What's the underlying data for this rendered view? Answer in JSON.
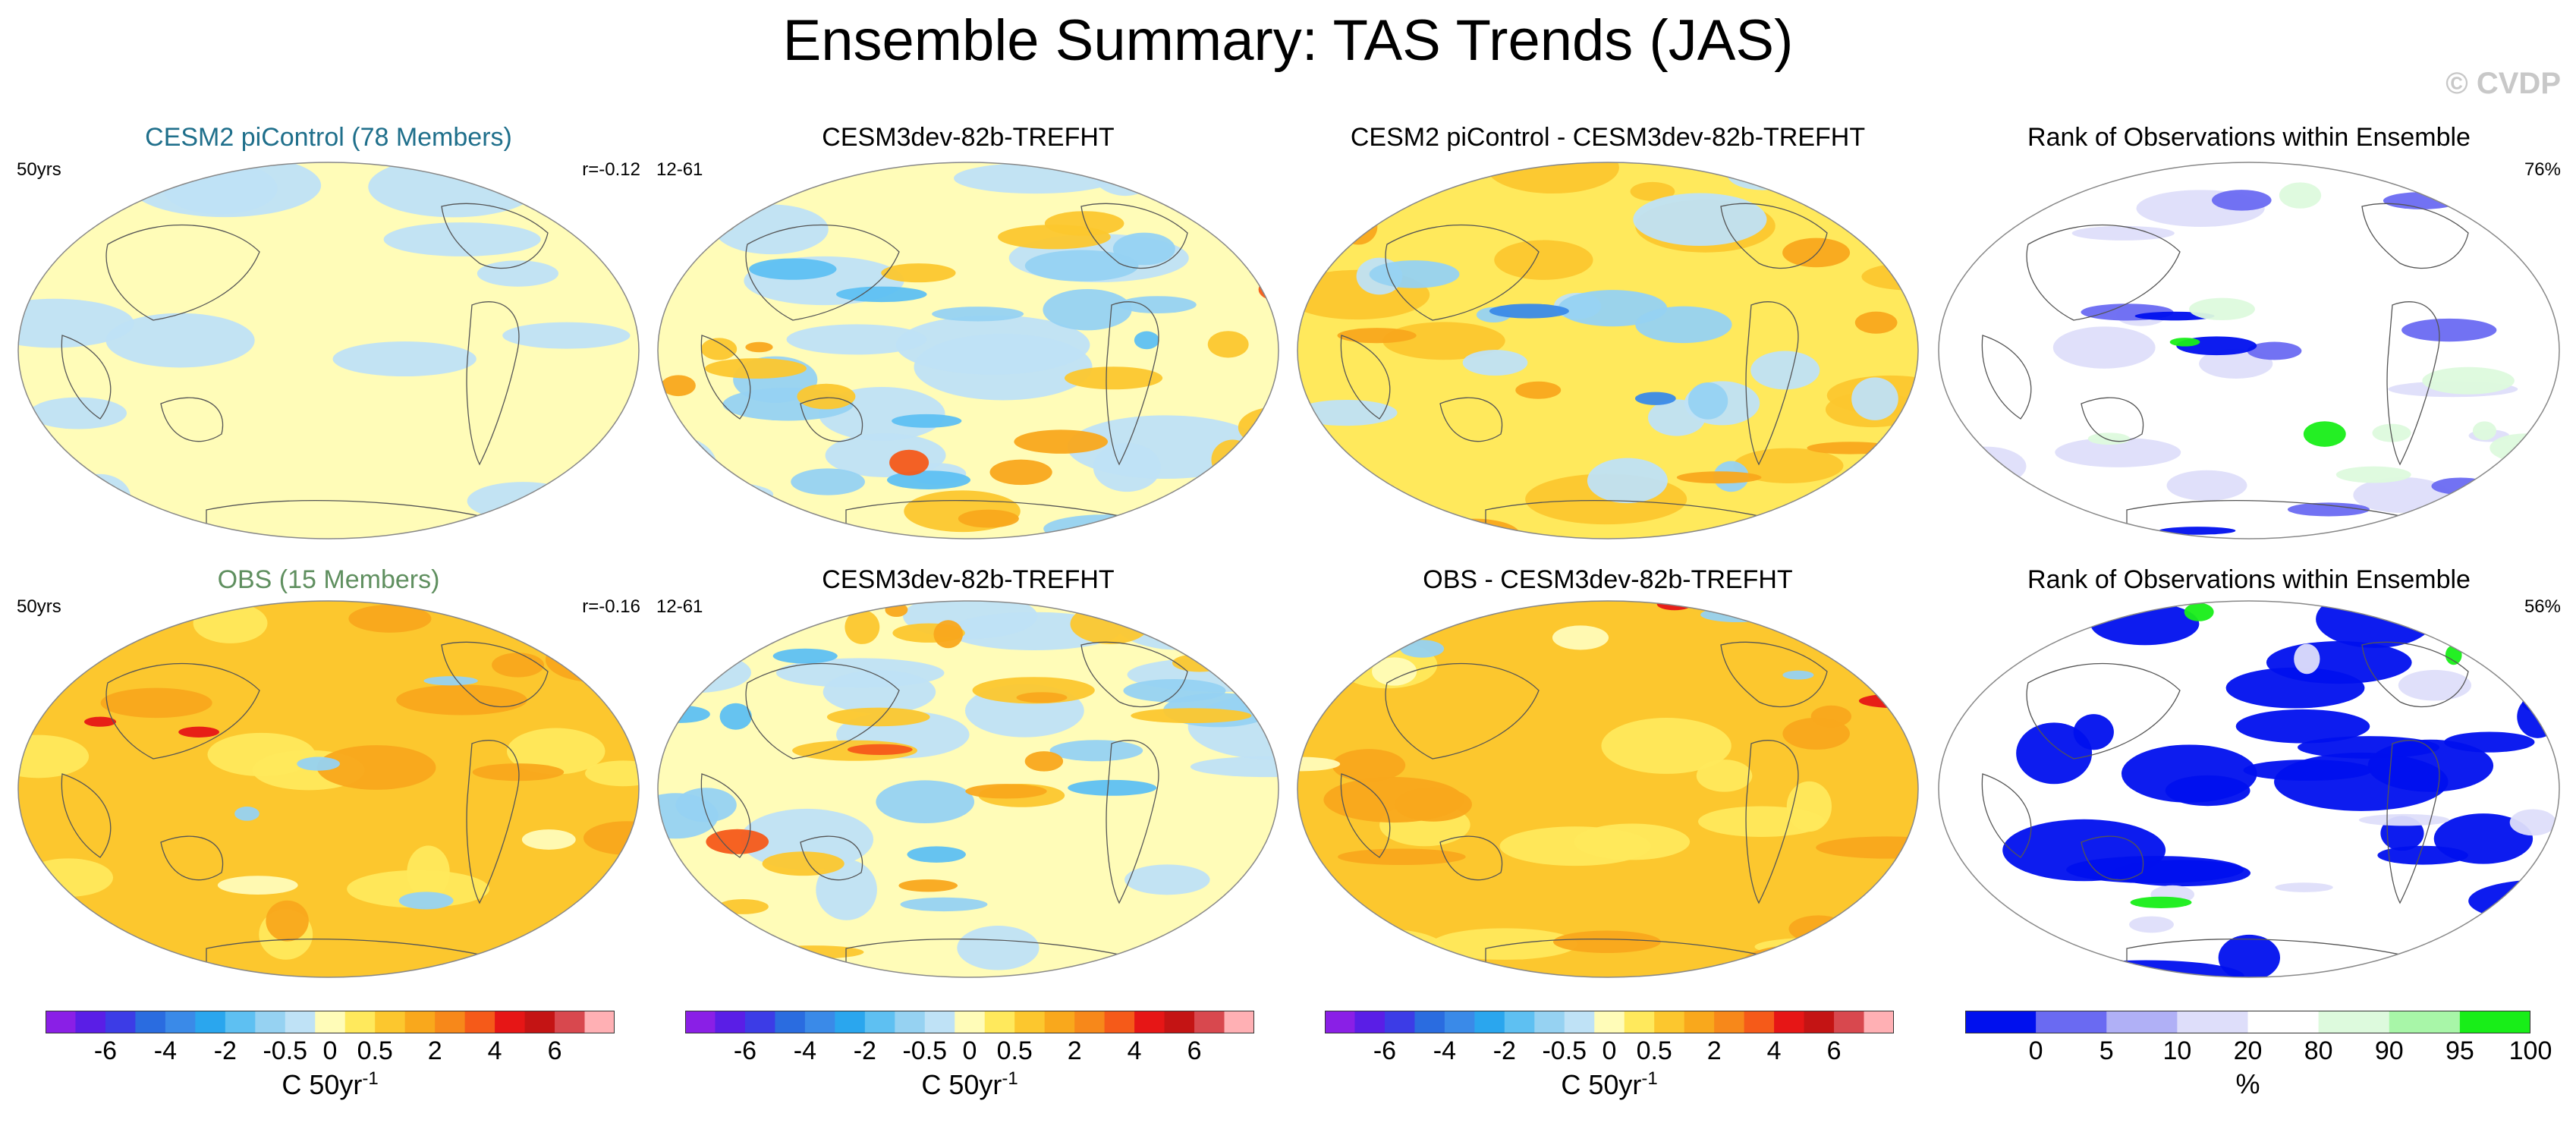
{
  "title": "Ensemble Summary: TAS Trends (JAS)",
  "watermark": "© CVDP",
  "panels": [
    {
      "title": "CESM2 piControl (78 Members)",
      "title_color": "#1f6f8b",
      "left_label": "50yrs",
      "right_label": "r=-0.12",
      "fill": "pale-yellow"
    },
    {
      "title": "CESM3dev-82b-TREFHT",
      "title_color": "#000000",
      "left_label": "12-61",
      "right_label": "",
      "fill": "mixed-blue-orange"
    },
    {
      "title": "CESM2 piControl - CESM3dev-82b-TREFHT",
      "title_color": "#000000",
      "left_label": "",
      "right_label": "",
      "fill": "mixed-orange-blue"
    },
    {
      "title": "Rank of Observations within Ensemble",
      "title_color": "#000000",
      "left_label": "",
      "right_label": "76%",
      "fill": "rank-sparse"
    },
    {
      "title": "OBS (15 Members)",
      "title_color": "#5f8f5f",
      "left_label": "50yrs",
      "right_label": "r=-0.16",
      "fill": "warm-orange"
    },
    {
      "title": "CESM3dev-82b-TREFHT",
      "title_color": "#000000",
      "left_label": "12-61",
      "right_label": "",
      "fill": "mixed-blue-orange"
    },
    {
      "title": "OBS - CESM3dev-82b-TREFHT",
      "title_color": "#000000",
      "left_label": "",
      "right_label": "",
      "fill": "warm-orange"
    },
    {
      "title": "Rank of Observations within Ensemble",
      "title_color": "#000000",
      "left_label": "",
      "right_label": "56%",
      "fill": "rank-dense"
    }
  ],
  "colorbars": {
    "trend": {
      "colors": [
        "#8a1fe6",
        "#5a1ee6",
        "#3c3ce6",
        "#2a6ce0",
        "#3a8ae8",
        "#2aa6ee",
        "#5ec0f2",
        "#96d2f2",
        "#bfe2f6",
        "#fffcb8",
        "#ffe95c",
        "#fcc72e",
        "#f9a81c",
        "#f7881a",
        "#f55a19",
        "#e61616",
        "#c41414",
        "#d8484e",
        "#ffb0b4"
      ],
      "ticks": [
        "-6",
        "-4",
        "-2",
        "-0.5",
        "0",
        "0.5",
        "2",
        "4",
        "6"
      ],
      "unit": "C 50yr",
      "unit_sup": "-1"
    },
    "rank": {
      "colors": [
        "#0010ee",
        "#6a6af2",
        "#b0b0f6",
        "#dedefa",
        "#ffffff",
        "#ddfadd",
        "#a8f6a8",
        "#18ee18"
      ],
      "ticks": [
        "0",
        "5",
        "10",
        "20",
        "80",
        "90",
        "95",
        "100"
      ],
      "unit": "%",
      "unit_sup": ""
    }
  }
}
